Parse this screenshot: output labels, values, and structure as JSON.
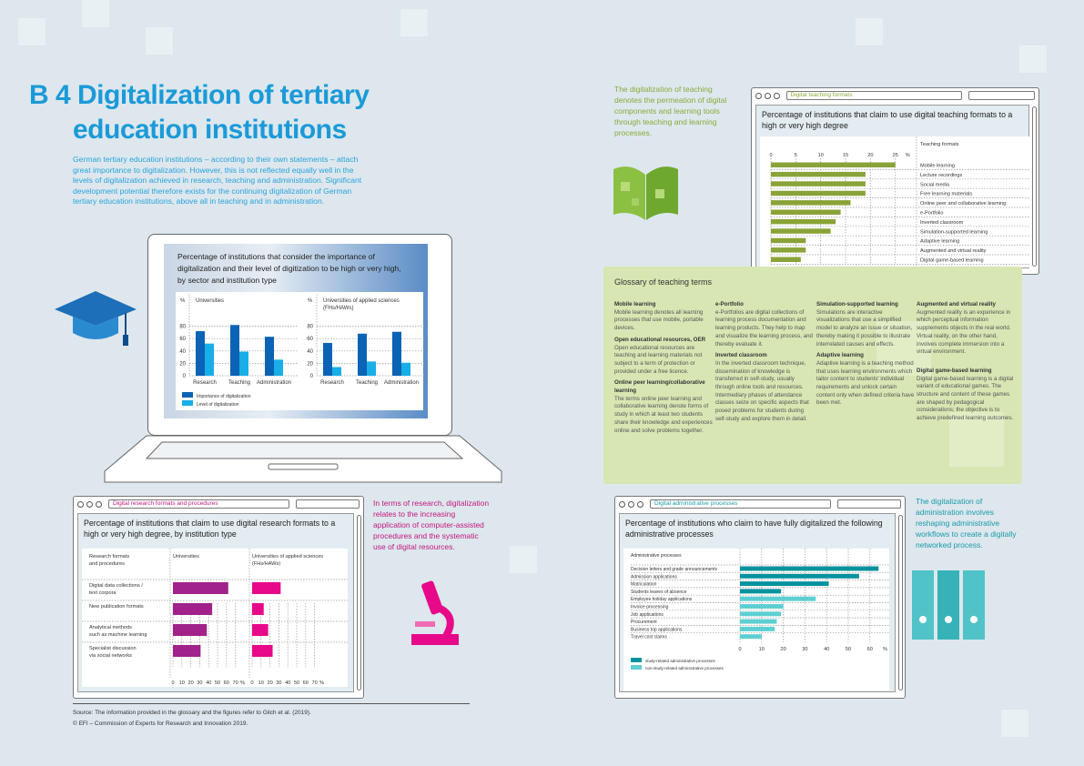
{
  "header": {
    "title_line1": "B 4 Digitalization of tertiary",
    "title_line2": "education institutions",
    "intro": "German tertiary education institutions – according to their own statements – attach great importance to digitalization. However, this is not reflected equally well in the levels of digitalization achieved in research, teaching and administration. Significant development potential therefore exists for the continuing digitalization of German tertiary education institutions, above all in teaching and in administration."
  },
  "side_texts": {
    "teaching": "The digitalization of teaching denotes the permeation of digital components and learning tools through teaching and learning processes.",
    "research": "In terms of research, digitalization relates to the increasing application of computer-assisted procedures and the systematic use of digital resources.",
    "administration": "The digitalization of administration involves reshaping administrative workflows to create a digitally networked process."
  },
  "windows": {
    "teaching_tab": "Digital teaching formats",
    "research_tab": "Digital research formats and procedures",
    "admin_tab": "Digital administrative processes"
  },
  "glossary": {
    "title": "Glossary of teaching terms",
    "entries": [
      {
        "term": "Mobile learning",
        "text": "Mobile learning denotes all learning processes that use mobile, portable devices."
      },
      {
        "term": "Open educational resources, OER",
        "text": "Open educational resources are teaching and learning materials not subject to a term of protection or provided under a free licence."
      },
      {
        "term": "Online peer learning/collaborative learning",
        "text": "The terms online peer learning and collaborative learning denote forms of study in which at least two students share their knowledge and experiences online and solve problems together."
      },
      {
        "term": "e-Portfolio",
        "text": "e-Portfolios are digital collections of learning process documentation and learning products. They help to map and visualize the learning process, and thereby evaluate it."
      },
      {
        "term": "Inverted classroom",
        "text": "In the inverted classroom technique, dissemination of knowledge is transferred in self-study, usually through online tools and resources. Intermediary phases of attendance classes seize on specific aspects that posed problems for students during self-study and explore them in detail."
      },
      {
        "term": "Simulation-supported learning",
        "text": "Simulations are interactive visualizations that use a simplified model to analyze an issue or situation, thereby making it possible to illustrate interrelated causes and effects."
      },
      {
        "term": "Adaptive learning",
        "text": "Adaptive learning is a teaching method that uses learning environments which tailor content to students' individual requirements and unlock certain content only when defined criteria have been met."
      },
      {
        "term": "Augmented and virtual reality",
        "text": "Augmented reality is an experience in which perceptual information supplements objects in the real world. Virtual reality, on the other hand, involves complete immersion into a virtual environment."
      },
      {
        "term": "Digital game-based learning",
        "text": "Digital game-based learning is a digital variant of educational games. The structure and content of these games are shaped by pedagogical considerations; the objective is to achieve predefined learning outcomes."
      }
    ]
  },
  "footer": {
    "source": "Source: The information provided in the glossary and the figures refer to Gilch et al. (2019).",
    "copyright": "© EFI – Commission of Experts for Research and Innovation 2019."
  },
  "chart_data": [
    {
      "type": "bar",
      "title": "Percentage of institutions that consider the importance of digitalization and their level of digitization to be high or very high, by sector and institution type",
      "ylabel": "%",
      "ylim": [
        0,
        90
      ],
      "yticks": [
        "0",
        "20",
        "40",
        "60",
        "80"
      ],
      "categories": [
        "Research",
        "Teaching",
        "Administration"
      ],
      "panels": [
        {
          "name": "Universities",
          "series": [
            {
              "name": "Importance of digitalization",
              "values": [
                72,
                82,
                63
              ]
            },
            {
              "name": "Level of digitalization",
              "values": [
                52,
                39,
                26
              ]
            }
          ]
        },
        {
          "name": "Universities of applied sciences (FHs/HAWs)",
          "series": [
            {
              "name": "Importance of digitalization",
              "values": [
                53,
                68,
                71
              ]
            },
            {
              "name": "Level of digitalization",
              "values": [
                14,
                23,
                21
              ]
            }
          ]
        }
      ],
      "legend": [
        "Importance of digitalization",
        "Level of digitalization"
      ],
      "colors": [
        "#0a63b4",
        "#18aee8"
      ]
    },
    {
      "type": "bar",
      "orientation": "horizontal",
      "title": "Percentage of institutions that claim to use digital teaching formats to a high or very high degree",
      "column_header": "Teaching formats",
      "unit": "%",
      "xlim": [
        0,
        25
      ],
      "xticks": [
        "0",
        "5",
        "10",
        "15",
        "20",
        "25"
      ],
      "categories": [
        "Mobile learning",
        "Lecture recordings",
        "Social media",
        "Free learning materials",
        "Online peer and collaborative learning",
        "e-Portfolio",
        "Inverted classroom",
        "Simulation-supported learning",
        "Adaptive learning",
        "Augmented and virtual reality",
        "Digital game-based learning"
      ],
      "values": [
        25,
        19,
        19,
        19,
        16,
        14,
        13,
        12,
        7,
        7,
        6
      ],
      "color": "#8aa338"
    },
    {
      "type": "bar",
      "orientation": "horizontal",
      "title": "Percentage of institutions that claim to use digital research formats to a high or very high degree, by institution type",
      "column_header": "Research formats and procedures",
      "unit": "%",
      "xlim": [
        0,
        70
      ],
      "xticks": [
        "0",
        "10",
        "20",
        "30",
        "40",
        "50",
        "60",
        "70"
      ],
      "categories": [
        "Digital data collections / text corpora",
        "New publication formats",
        "Analytical methods such as machine learning",
        "Specialist discussion via social networks"
      ],
      "panels": [
        {
          "name": "Universities",
          "values": [
            62,
            44,
            38,
            31
          ],
          "color": "#a0228a"
        },
        {
          "name": "Universities of applied sciences (FHs/HAWs)",
          "values": [
            32,
            13,
            18,
            23
          ],
          "color": "#e8088a"
        }
      ]
    },
    {
      "type": "bar",
      "orientation": "horizontal",
      "title": "Percentage of institutions who claim to have fully digitalized the following administrative processes",
      "column_header": "Administrative processes",
      "unit": "%",
      "xlim": [
        0,
        65
      ],
      "xticks": [
        "0",
        "10",
        "20",
        "30",
        "40",
        "50",
        "60"
      ],
      "categories": [
        "Decision letters and grade announcements",
        "Admission applications",
        "Matriculation",
        "Students leaves of absence",
        "Employee holiday applications",
        "Invoice processing",
        "Job applications",
        "Procurement",
        "Business trip applications",
        "Travel cost claims"
      ],
      "values": [
        64,
        55,
        41,
        19,
        35,
        20,
        19,
        17,
        16,
        10
      ],
      "groups": [
        0,
        0,
        0,
        0,
        1,
        1,
        1,
        1,
        1,
        1
      ],
      "legend": [
        "study-related administrative processes",
        "non-study-related administrative processes"
      ],
      "colors": [
        "#04939e",
        "#5dcfd2"
      ]
    }
  ]
}
